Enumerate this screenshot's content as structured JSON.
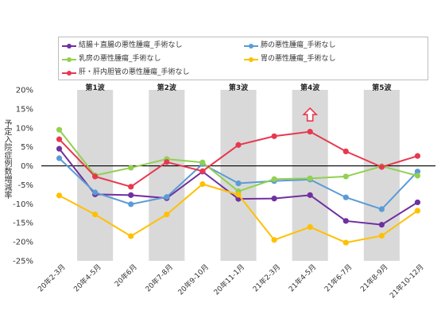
{
  "chart_data": {
    "type": "line",
    "title": "",
    "ylabel": "予定入院症例数増減率",
    "ylim": [
      -25,
      20
    ],
    "y_ticks": [
      "20%",
      "15%",
      "10%",
      "5%",
      "0%",
      "-5%",
      "-10%",
      "-15%",
      "-20%",
      "-25%"
    ],
    "categories": [
      "20年2-3月",
      "20年4-5月",
      "20年6月",
      "20年7-8月",
      "20年9-10月",
      "20年11-1月",
      "21年2-3月",
      "21年4-5月",
      "21年6-7月",
      "21年8-9月",
      "21年10-12月"
    ],
    "waves": [
      {
        "label": "第1波",
        "from": 1,
        "to": 2
      },
      {
        "label": "第2波",
        "from": 3,
        "to": 4
      },
      {
        "label": "第3波",
        "from": 5,
        "to": 6
      },
      {
        "label": "第4波",
        "from": 7,
        "to": 8
      },
      {
        "label": "第5波",
        "from": 9,
        "to": 10
      }
    ],
    "series": [
      {
        "name": "結腸＋直腸の悪性腫瘍_手術なし",
        "color": "#7030a0",
        "values": [
          4.5,
          -7.5,
          -7.7,
          -8.5,
          -1.5,
          -8.7,
          -8.6,
          -7.7,
          -14.5,
          -15.5,
          -9.6
        ]
      },
      {
        "name": "肺の悪性腫瘍_手術なし",
        "color": "#5b9bd5",
        "values": [
          2.0,
          -7.0,
          -10.1,
          -8.2,
          0.5,
          -4.6,
          -4.0,
          -3.6,
          -8.3,
          -11.4,
          -1.5
        ]
      },
      {
        "name": "乳房の悪性腫瘍_手術なし",
        "color": "#92d050",
        "values": [
          9.5,
          -2.5,
          -0.5,
          1.8,
          0.9,
          -6.7,
          -3.5,
          -3.3,
          -2.8,
          -0.1,
          -2.6
        ]
      },
      {
        "name": "胃の悪性腫瘍_手術なし",
        "color": "#ffc000",
        "values": [
          -7.8,
          -12.8,
          -18.5,
          -12.8,
          -4.8,
          -7.6,
          -19.5,
          -16.1,
          -20.2,
          -18.4,
          -11.8
        ]
      },
      {
        "name": "肝・肝内胆管の悪性腫瘍_手術なし",
        "color": "#e8384f",
        "values": [
          7.0,
          -2.8,
          -5.5,
          1.0,
          -1.4,
          5.5,
          7.8,
          9.0,
          3.8,
          -0.3,
          2.6
        ]
      }
    ],
    "annotation": {
      "type": "up-arrow",
      "at_index": 7,
      "color": "#e8384f"
    },
    "legend_position": "top",
    "grid": false
  }
}
